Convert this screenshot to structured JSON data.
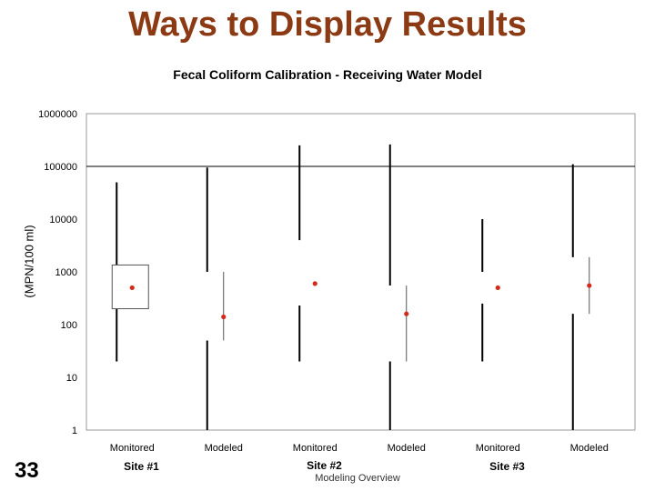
{
  "slide": {
    "title": "Ways to Display Results",
    "number": "33",
    "footer": "Modeling Overview"
  },
  "chart_data": {
    "type": "boxplot",
    "title": "Fecal Coliform Calibration - Receiving Water Model",
    "ylabel": "(MPN/100 ml)",
    "yscale": "log",
    "ylim": [
      1,
      1000000
    ],
    "yticks": [
      "1",
      "10",
      "100",
      "1000",
      "10000",
      "100000",
      "1000000"
    ],
    "reference_line": 100000,
    "grid": false,
    "categories": [
      "Monitored",
      "Modeled",
      "Monitored",
      "Modeled",
      "Monitored",
      "Modeled"
    ],
    "groups": [
      {
        "label": "Site #1",
        "members": [
          0,
          1
        ]
      },
      {
        "label": "Site #2",
        "members": [
          2,
          3
        ]
      },
      {
        "label": "Site #3",
        "members": [
          4,
          5
        ]
      }
    ],
    "series": [
      {
        "min": 20,
        "q1": 200,
        "q3": 1350,
        "max": 50000,
        "mean": 500
      },
      {
        "min": 1,
        "q1": 50,
        "q3": 1000,
        "max": 95000,
        "mean": 140
      },
      {
        "min": 20,
        "q1": 230,
        "q3": 4000,
        "max": 250000,
        "mean": 600
      },
      {
        "min": 1,
        "q1": 20,
        "q3": 550,
        "max": 260000,
        "mean": 160
      },
      {
        "min": 20,
        "q1": 250,
        "q3": 1000,
        "max": 10000,
        "mean": 500
      },
      {
        "min": 1,
        "q1": 160,
        "q3": 1900,
        "max": 110000,
        "mean": 550
      }
    ],
    "colors": {
      "mean": "#d42a1a",
      "whisker": "#000000",
      "reference": "#000000"
    }
  }
}
